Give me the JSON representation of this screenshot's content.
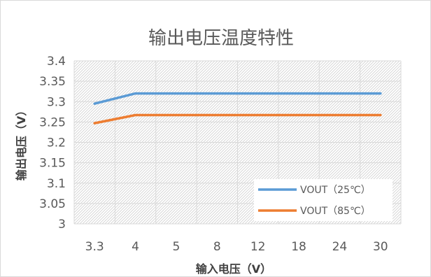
{
  "chart_data": {
    "type": "line",
    "title": "输出电压温度特性",
    "xlabel": "输入电压（V）",
    "ylabel": "输出电压（V）",
    "categories": [
      "3.3",
      "4",
      "5",
      "8",
      "12",
      "18",
      "24",
      "30"
    ],
    "ylim": [
      3,
      3.4
    ],
    "ytick_step": 0.05,
    "y_tick_labels": [
      "3",
      "3.05",
      "3.1",
      "3.15",
      "3.2",
      "3.25",
      "3.3",
      "3.35",
      "3.4"
    ],
    "grid": true,
    "plot_background": "hatched",
    "legend_position": "bottom-right, inside plot",
    "series": [
      {
        "name": "VOUT（25℃）",
        "color": "#5b9bd5",
        "values": [
          3.295,
          3.32,
          3.32,
          3.32,
          3.32,
          3.32,
          3.32,
          3.32
        ]
      },
      {
        "name": "VOUT（85℃）",
        "color": "#ed7d31",
        "values": [
          3.247,
          3.267,
          3.267,
          3.267,
          3.267,
          3.267,
          3.267,
          3.267
        ]
      }
    ]
  }
}
